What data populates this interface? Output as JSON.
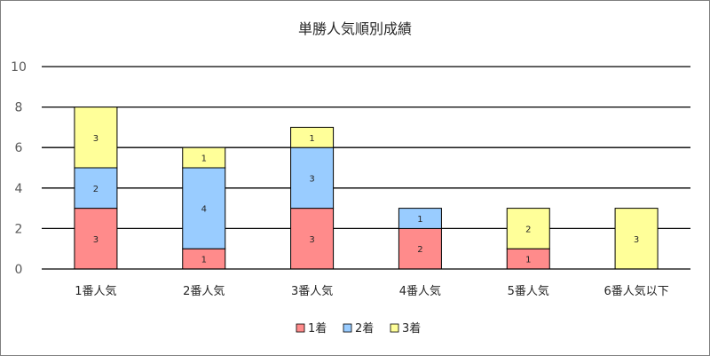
{
  "chart_data": {
    "type": "bar",
    "stacked": true,
    "title": "単勝人気順別成績",
    "categories": [
      "1番人気",
      "2番人気",
      "3番人気",
      "4番人気",
      "5番人気",
      "6番人気以下"
    ],
    "series": [
      {
        "name": "1着",
        "color": "#ff8b8b",
        "values": [
          3,
          1,
          3,
          2,
          1,
          0
        ]
      },
      {
        "name": "2着",
        "color": "#99ccff",
        "values": [
          2,
          4,
          3,
          1,
          0,
          0
        ]
      },
      {
        "name": "3着",
        "color": "#ffff99",
        "values": [
          3,
          1,
          1,
          0,
          2,
          3
        ]
      }
    ],
    "ylim": [
      0,
      10
    ],
    "yticks": [
      0,
      2,
      4,
      6,
      8,
      10
    ],
    "grid": true,
    "legend": "bottom"
  }
}
